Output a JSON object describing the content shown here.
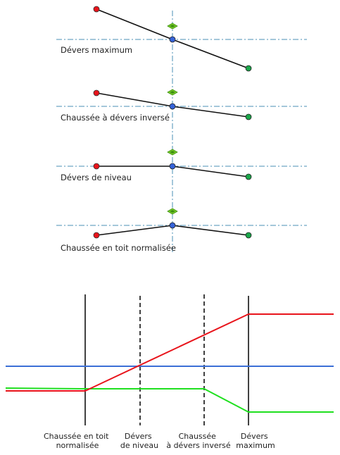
{
  "cross_sections": [
    {
      "label": "Dévers maximum"
    },
    {
      "label": "Chaussée à dévers inversé"
    },
    {
      "label": "Dévers de niveau"
    },
    {
      "label": "Chaussée en toit normalisée"
    }
  ],
  "transition_diagram": {
    "stations": [
      {
        "lines": [
          "Chaussée en toit",
          "normalisée"
        ]
      },
      {
        "lines": [
          "Dévers",
          "de niveau"
        ]
      },
      {
        "lines": [
          "Chaussée",
          "à dévers inversé"
        ]
      },
      {
        "lines": [
          "Dévers",
          "maximum"
        ]
      }
    ]
  },
  "colors": {
    "left_edge": "#e8141b",
    "right_edge": "#1fe01f",
    "centerline": "#3b6fd6",
    "axis_guides": "#4a8fb5",
    "grip": "#7ccf2a",
    "left_point": "#e8141b",
    "right_point": "#1aa64a",
    "center_point": "#3563d8"
  }
}
